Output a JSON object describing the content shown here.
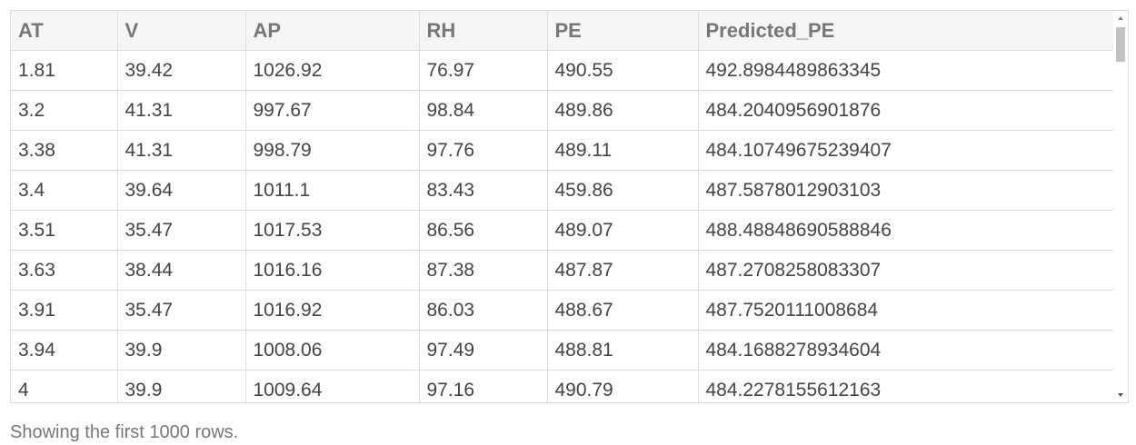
{
  "table": {
    "headers": [
      "AT",
      "V",
      "AP",
      "RH",
      "PE",
      "Predicted_PE"
    ],
    "rows": [
      [
        "1.81",
        "39.42",
        "1026.92",
        "76.97",
        "490.55",
        "492.8984489863345"
      ],
      [
        "3.2",
        "41.31",
        "997.67",
        "98.84",
        "489.86",
        "484.2040956901876"
      ],
      [
        "3.38",
        "41.31",
        "998.79",
        "97.76",
        "489.11",
        "484.10749675239407"
      ],
      [
        "3.4",
        "39.64",
        "1011.1",
        "83.43",
        "459.86",
        "487.5878012903103"
      ],
      [
        "3.51",
        "35.47",
        "1017.53",
        "86.56",
        "489.07",
        "488.48848690588846"
      ],
      [
        "3.63",
        "38.44",
        "1016.16",
        "87.38",
        "487.87",
        "487.2708258083307"
      ],
      [
        "3.91",
        "35.47",
        "1016.92",
        "86.03",
        "488.67",
        "487.7520111008684"
      ],
      [
        "3.94",
        "39.9",
        "1008.06",
        "97.49",
        "488.81",
        "484.1688278934604"
      ],
      [
        "4",
        "39.9",
        "1009.64",
        "97.16",
        "490.79",
        "484.2278155612163"
      ]
    ]
  },
  "footer": {
    "note": "Showing the first 1000 rows."
  },
  "icons": {
    "scroll_up": "chevron-up-icon",
    "scroll_down": "chevron-down-icon"
  },
  "colors": {
    "header_background": "#f5f5f5",
    "border": "#dcdcdc",
    "header_text": "#777777",
    "cell_text": "#444444",
    "scroll_thumb": "#c1c1c1"
  }
}
